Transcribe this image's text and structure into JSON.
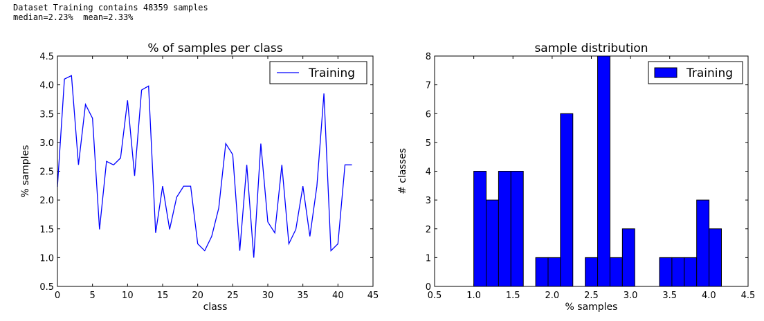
{
  "output": {
    "line1": "Dataset Training contains 48359 samples",
    "line2": "median=2.23%  mean=2.33%"
  },
  "chart_data": [
    {
      "type": "line",
      "title": "% of samples per class",
      "xlabel": "class",
      "ylabel": "% samples",
      "xlim": [
        0,
        45
      ],
      "ylim": [
        0.5,
        4.5
      ],
      "xticks": [
        0,
        5,
        10,
        15,
        20,
        25,
        30,
        35,
        40,
        45
      ],
      "yticks": [
        0.5,
        1.0,
        1.5,
        2.0,
        2.5,
        3.0,
        3.5,
        4.0,
        4.5
      ],
      "legend": "top-right",
      "grid": false,
      "color": "#0000ff",
      "series": [
        {
          "name": "Training",
          "x": [
            0,
            1,
            2,
            3,
            4,
            5,
            6,
            7,
            8,
            9,
            10,
            11,
            12,
            13,
            14,
            15,
            16,
            17,
            18,
            19,
            20,
            21,
            22,
            23,
            24,
            25,
            26,
            27,
            28,
            29,
            30,
            31,
            32,
            33,
            34,
            35,
            36,
            37,
            38,
            39,
            40,
            41,
            42
          ],
          "values": [
            2.23,
            4.1,
            4.16,
            2.61,
            3.66,
            3.42,
            1.49,
            2.67,
            2.61,
            2.73,
            3.73,
            2.42,
            3.91,
            3.98,
            1.43,
            2.24,
            1.49,
            2.05,
            2.24,
            2.24,
            1.24,
            1.12,
            1.37,
            1.86,
            2.98,
            2.79,
            1.12,
            2.61,
            1.0,
            2.98,
            1.62,
            1.43,
            2.61,
            1.24,
            1.49,
            2.24,
            1.37,
            2.24,
            3.85,
            1.12,
            1.24,
            2.61,
            2.61
          ]
        }
      ]
    },
    {
      "type": "bar",
      "title": "sample distribution",
      "xlabel": "% samples",
      "ylabel": "# classes",
      "xlim": [
        0.5,
        4.5
      ],
      "ylim": [
        0,
        8
      ],
      "xticks": [
        0.5,
        1.0,
        1.5,
        2.0,
        2.5,
        3.0,
        3.5,
        4.0,
        4.5
      ],
      "yticks": [
        0,
        1,
        2,
        3,
        4,
        5,
        6,
        7,
        8
      ],
      "legend": "top-right",
      "grid": false,
      "color": "#0000ff",
      "bin_width": 0.158,
      "series": [
        {
          "name": "Training",
          "bin_starts": [
            1.0,
            1.158,
            1.316,
            1.474,
            1.632,
            1.79,
            1.948,
            2.106,
            2.264,
            2.422,
            2.58,
            2.738,
            2.896,
            3.054,
            3.212,
            3.37,
            3.528,
            3.686,
            3.844,
            4.002
          ],
          "values": [
            4,
            3,
            4,
            4,
            0,
            1,
            1,
            6,
            0,
            1,
            8,
            1,
            2,
            0,
            0,
            1,
            1,
            1,
            3,
            2
          ]
        }
      ]
    }
  ]
}
